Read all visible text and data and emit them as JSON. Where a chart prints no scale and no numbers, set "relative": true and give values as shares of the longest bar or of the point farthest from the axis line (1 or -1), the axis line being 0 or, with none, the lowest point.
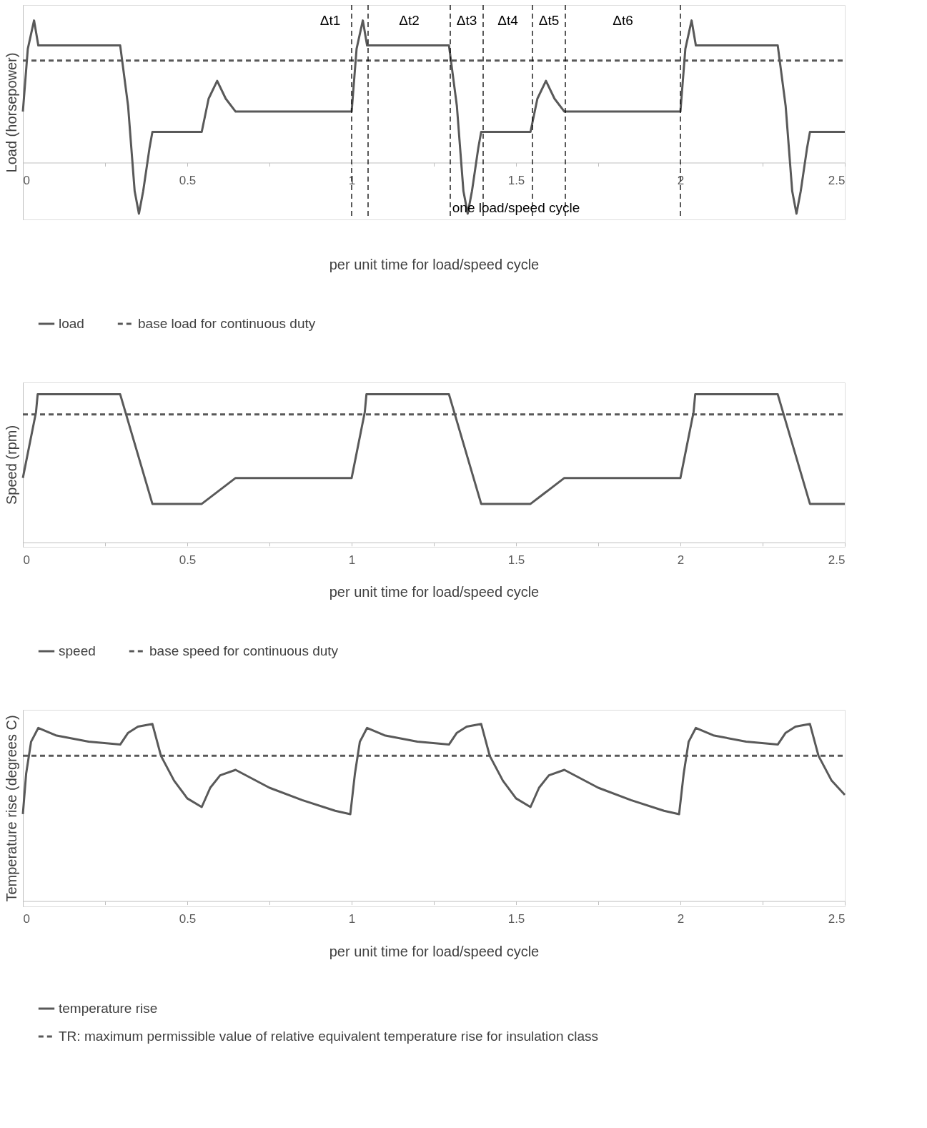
{
  "chart_data": [
    {
      "type": "line",
      "relative": true,
      "xlabel": "per unit time for load/speed cycle",
      "ylabel": "Load (horsepower)",
      "xlim": [
        0,
        2.5
      ],
      "xticks": [
        0,
        {
          "value": 0.25,
          "label": null
        },
        0.5,
        {
          "value": 0.75,
          "label": null
        },
        1,
        {
          "value": 1.25,
          "label": null
        },
        1.5,
        {
          "value": 1.75,
          "label": null
        },
        2,
        {
          "value": 2.25,
          "label": null
        },
        2.5
      ],
      "tick_labels": "x",
      "grid": false,
      "legend": "bottom",
      "series": [
        {
          "name": "load",
          "color": "#595959",
          "line_style": "solid",
          "x": [
            0,
            0.015,
            0.034,
            0.047,
            0.296,
            0.32,
            0.34,
            0.353,
            0.366,
            0.385,
            0.394,
            0.544,
            0.565,
            0.591,
            0.617,
            0.647,
            1.0,
            1.015,
            1.034,
            1.047,
            1.296,
            1.32,
            1.34,
            1.353,
            1.366,
            1.385,
            1.394,
            1.544,
            1.565,
            1.591,
            1.617,
            1.647,
            2.0,
            2.015,
            2.034,
            2.047,
            2.296,
            2.32,
            2.34,
            2.353,
            2.366,
            2.385,
            2.394,
            2.5
          ],
          "values": [
            0.359,
            0.8,
            1.0,
            0.824,
            0.824,
            0.4,
            -0.2,
            -0.359,
            -0.2,
            0.1,
            0.216,
            0.216,
            0.45,
            0.575,
            0.45,
            0.359,
            0.359,
            0.8,
            1.0,
            0.824,
            0.824,
            0.4,
            -0.2,
            -0.359,
            -0.2,
            0.1,
            0.216,
            0.216,
            0.45,
            0.575,
            0.45,
            0.359,
            0.359,
            0.8,
            1.0,
            0.824,
            0.824,
            0.4,
            -0.2,
            -0.359,
            -0.2,
            0.1,
            0.216,
            0.216
          ]
        },
        {
          "name": "base load for continuous duty",
          "color": "#595959",
          "line_style": "dashed",
          "x": [
            0,
            2.5
          ],
          "values": [
            0.718,
            0.718
          ]
        }
      ],
      "ref_lines": [
        {
          "axis": "x",
          "value": 1.0,
          "color": "#000000",
          "line_style": "dashed"
        },
        {
          "axis": "x",
          "value": 1.05,
          "color": "#000000",
          "line_style": "dashed"
        },
        {
          "axis": "x",
          "value": 1.3,
          "color": "#000000",
          "line_style": "dashed"
        },
        {
          "axis": "x",
          "value": 1.4,
          "color": "#000000",
          "line_style": "dashed"
        },
        {
          "axis": "x",
          "value": 1.55,
          "color": "#000000",
          "line_style": "dashed"
        },
        {
          "axis": "x",
          "value": 1.65,
          "color": "#000000",
          "line_style": "dashed"
        },
        {
          "axis": "x",
          "value": 2.0,
          "color": "#000000",
          "line_style": "dashed"
        }
      ],
      "annotations": [
        "Δt1",
        "Δt2",
        "Δt3",
        "Δt4",
        "Δt5",
        "Δt6",
        "one load/speed cycle"
      ]
    },
    {
      "type": "line",
      "relative": true,
      "xlabel": "per unit time for load/speed cycle",
      "ylabel": "Speed (rpm)",
      "xlim": [
        0,
        2.5
      ],
      "xticks": [
        0,
        {
          "value": 0.25,
          "label": null
        },
        0.5,
        {
          "value": 0.75,
          "label": null
        },
        1,
        {
          "value": 1.25,
          "label": null
        },
        1.5,
        {
          "value": 1.75,
          "label": null
        },
        2,
        {
          "value": 2.25,
          "label": null
        },
        2.5
      ],
      "tick_labels": "x",
      "grid": false,
      "legend": "bottom",
      "series": [
        {
          "name": "speed",
          "color": "#595959",
          "line_style": "solid",
          "x": [
            0,
            0.04,
            0.045,
            0.296,
            0.394,
            0.544,
            0.647,
            1.0,
            1.04,
            1.045,
            1.296,
            1.394,
            1.544,
            1.647,
            2.0,
            2.04,
            2.045,
            2.296,
            2.394,
            2.5
          ],
          "values": [
            0.435,
            0.88,
            1.0,
            1.0,
            0.26,
            0.26,
            0.435,
            0.435,
            0.88,
            1.0,
            1.0,
            0.26,
            0.26,
            0.435,
            0.435,
            0.88,
            1.0,
            1.0,
            0.26,
            0.26
          ]
        },
        {
          "name": "base speed for continuous duty",
          "color": "#595959",
          "line_style": "dashed",
          "x": [
            0,
            2.5
          ],
          "values": [
            0.864,
            0.864
          ]
        }
      ]
    },
    {
      "type": "line",
      "relative": true,
      "xlabel": "per unit time for load/speed cycle",
      "ylabel": "Temperature rise (degrees C)",
      "xlim": [
        0,
        2.5
      ],
      "xticks": [
        0,
        {
          "value": 0.25,
          "label": null
        },
        0.5,
        {
          "value": 0.75,
          "label": null
        },
        1,
        {
          "value": 1.25,
          "label": null
        },
        1.5,
        {
          "value": 1.75,
          "label": null
        },
        2,
        {
          "value": 2.25,
          "label": null
        },
        2.5
      ],
      "tick_labels": "x",
      "grid": false,
      "legend": "bottom left",
      "series": [
        {
          "name": "temperature rise",
          "color": "#595959",
          "line_style": "solid",
          "x": [
            0,
            0.01,
            0.025,
            0.047,
            0.1,
            0.2,
            0.296,
            0.32,
            0.35,
            0.394,
            0.42,
            0.46,
            0.5,
            0.544,
            0.57,
            0.6,
            0.647,
            0.75,
            0.85,
            0.95,
            0.996,
            1.01,
            1.025,
            1.047,
            1.1,
            1.2,
            1.296,
            1.32,
            1.35,
            1.394,
            1.42,
            1.46,
            1.5,
            1.544,
            1.57,
            1.6,
            1.647,
            1.75,
            1.85,
            1.95,
            1.996,
            2.01,
            2.025,
            2.047,
            2.1,
            2.2,
            2.296,
            2.32,
            2.35,
            2.394,
            2.42,
            2.46,
            2.5
          ],
          "values": [
            0.491,
            0.72,
            0.9,
            0.978,
            0.936,
            0.9,
            0.884,
            0.95,
            0.985,
            1.0,
            0.82,
            0.68,
            0.58,
            0.531,
            0.64,
            0.71,
            0.741,
            0.64,
            0.57,
            0.51,
            0.491,
            0.72,
            0.9,
            0.978,
            0.936,
            0.9,
            0.884,
            0.95,
            0.985,
            1.0,
            0.82,
            0.68,
            0.58,
            0.531,
            0.64,
            0.71,
            0.741,
            0.64,
            0.57,
            0.51,
            0.491,
            0.72,
            0.9,
            0.978,
            0.936,
            0.9,
            0.884,
            0.95,
            0.985,
            1.0,
            0.82,
            0.68,
            0.6
          ]
        },
        {
          "name": "TR: maximum permissible value of relative equivalent temperature rise for insulation class",
          "color": "#595959",
          "line_style": "dashed",
          "x": [
            0,
            2.5
          ],
          "values": [
            0.821,
            0.821
          ]
        }
      ]
    }
  ]
}
